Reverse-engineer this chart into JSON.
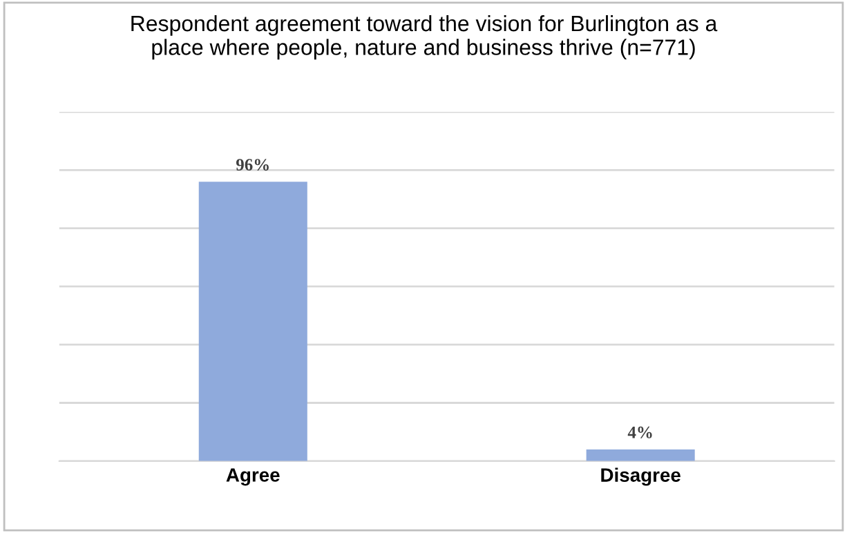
{
  "chart_data": {
    "type": "bar",
    "title": "Respondent agreement toward the vision for Burlington as a\nplace where people, nature and business thrive (n=771)",
    "categories": [
      "Agree",
      "Disagree"
    ],
    "values": [
      96,
      4
    ],
    "color": "#8faadc",
    "ylim": [
      0,
      120
    ],
    "yticks": [
      {
        "value": 0,
        "label": null
      },
      {
        "value": 20,
        "label": null
      },
      {
        "value": 40,
        "label": null
      },
      {
        "value": 60,
        "label": null
      },
      {
        "value": 80,
        "label": null
      },
      {
        "value": 100,
        "label": null
      },
      {
        "value": 120,
        "label": null
      }
    ],
    "value_labels": [
      "96%",
      "4%"
    ],
    "grid": "y",
    "tick_labels": "x"
  }
}
